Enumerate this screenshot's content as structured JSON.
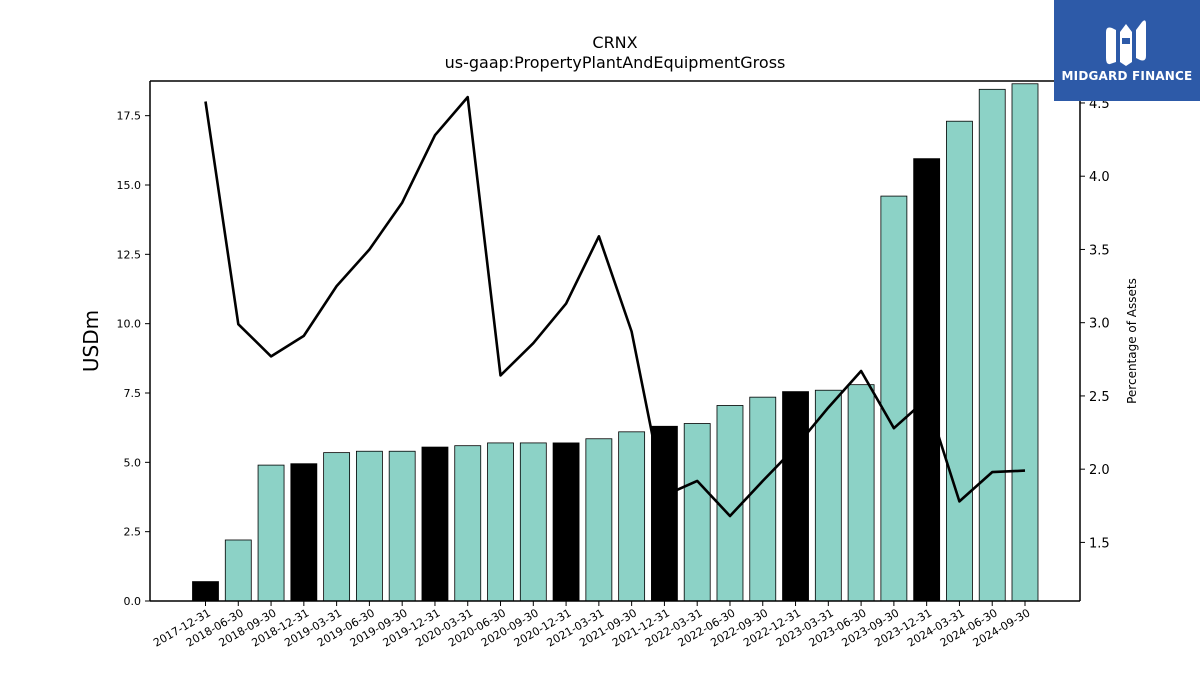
{
  "logo": {
    "text": "MIDGARD FINANCE",
    "color": "#2d5aa8",
    "icon": "midgard-m-logo-icon"
  },
  "chart_data": {
    "type": "bar",
    "title": "CRNX",
    "subtitle": "us-gaap:PropertyPlantAndEquipmentGross",
    "ylabel": "USDm",
    "y2label": "Percentage of Assets",
    "ylim": [
      0,
      18.75
    ],
    "y2lim": [
      1.1,
      4.65
    ],
    "yticks": [
      "0.0",
      "2.5",
      "5.0",
      "7.5",
      "10.0",
      "12.5",
      "15.0",
      "17.5"
    ],
    "y2ticks": [
      "1.5",
      "2.0",
      "2.5",
      "3.0",
      "3.5",
      "4.0",
      "4.5"
    ],
    "categories": [
      "2017-12-31",
      "2018-06-30",
      "2018-09-30",
      "2018-12-31",
      "2019-03-31",
      "2019-06-30",
      "2019-09-30",
      "2019-12-31",
      "2020-03-31",
      "2020-06-30",
      "2020-09-30",
      "2020-12-31",
      "2021-03-31",
      "2021-09-30",
      "2021-12-31",
      "2022-03-31",
      "2022-06-30",
      "2022-09-30",
      "2022-12-31",
      "2023-03-31",
      "2023-06-30",
      "2023-09-30",
      "2023-12-31",
      "2024-03-31",
      "2024-06-30",
      "2024-09-30"
    ],
    "series": [
      {
        "type": "bar",
        "values": [
          0.7,
          2.2,
          4.9,
          4.95,
          5.35,
          5.4,
          5.4,
          5.55,
          5.6,
          5.7,
          5.7,
          5.7,
          5.85,
          6.1,
          6.3,
          6.4,
          7.05,
          7.35,
          7.55,
          7.6,
          7.8,
          14.6,
          15.95,
          17.3,
          18.45,
          18.65
        ],
        "annual": [
          true,
          false,
          false,
          true,
          false,
          false,
          false,
          true,
          false,
          false,
          false,
          true,
          false,
          false,
          true,
          false,
          false,
          false,
          true,
          false,
          false,
          false,
          true,
          false,
          false,
          false
        ]
      },
      {
        "type": "line",
        "axis": "right",
        "values": [
          4.51,
          2.99,
          2.77,
          2.91,
          3.25,
          3.5,
          3.82,
          4.28,
          4.54,
          2.64,
          2.86,
          3.13,
          3.59,
          2.94,
          1.82,
          1.92,
          1.68,
          1.92,
          2.15,
          2.42,
          2.67,
          2.28,
          2.48,
          1.78,
          1.98,
          1.99
        ]
      }
    ],
    "colors": {
      "bar": "#8cd2c6",
      "annual_bar": "#000000",
      "line": "#000000"
    },
    "grid": false,
    "legend": "none"
  }
}
